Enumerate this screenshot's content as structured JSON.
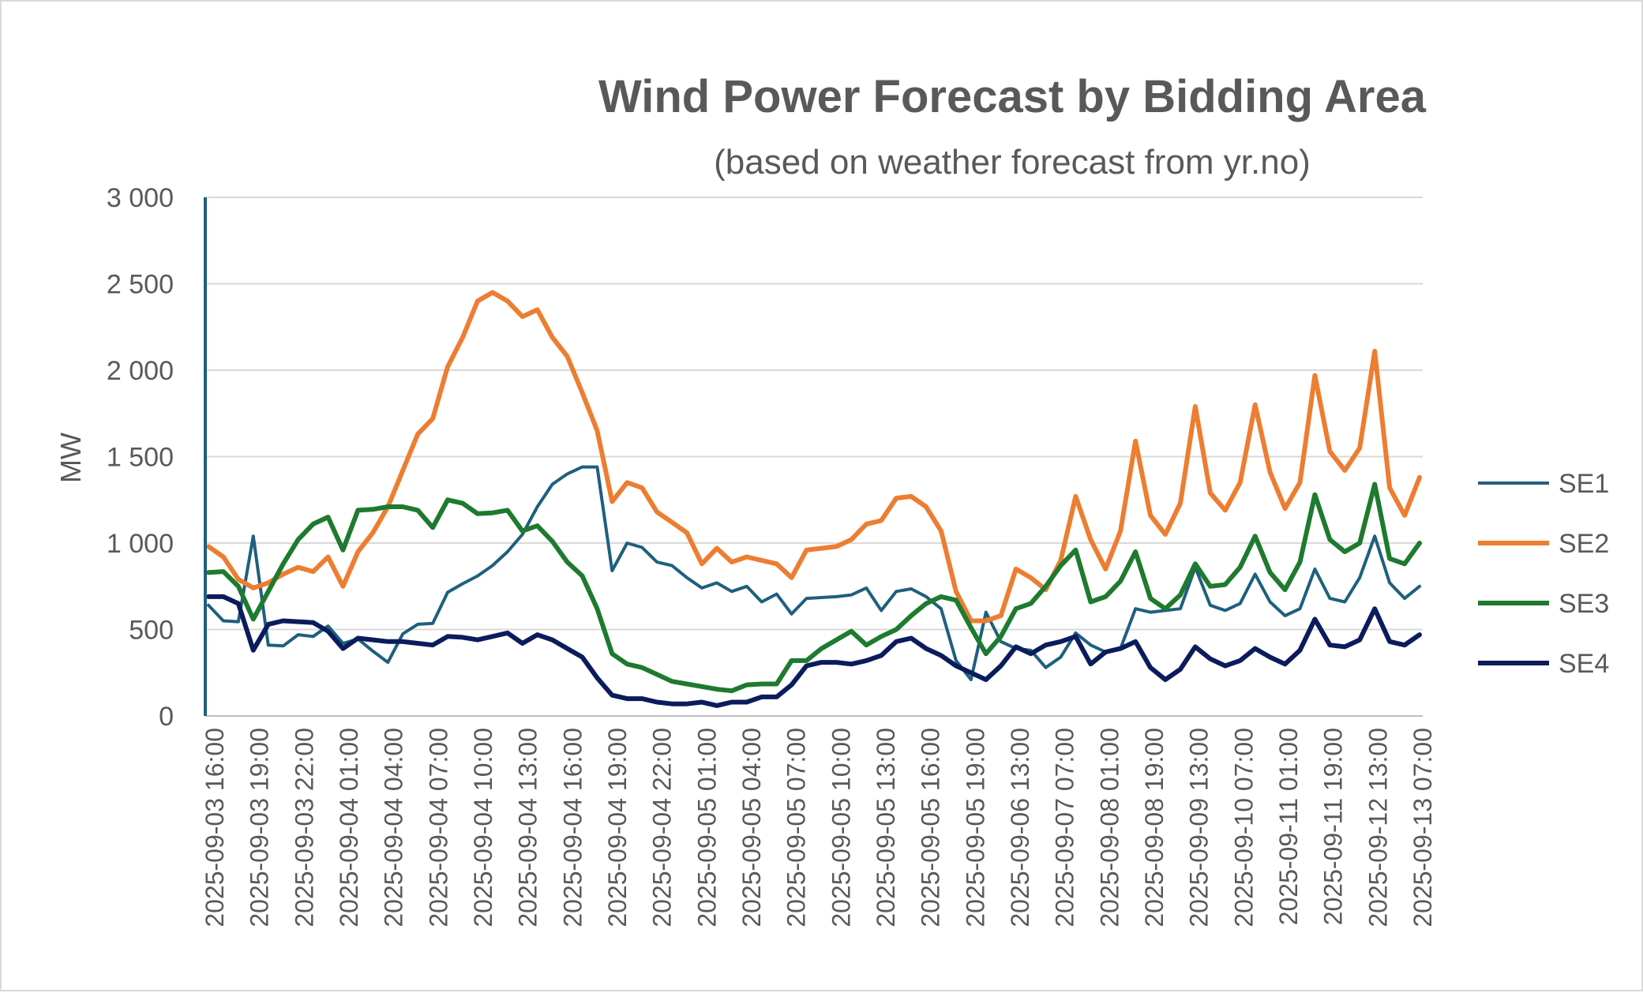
{
  "chart_data": {
    "type": "line",
    "title": "Wind Power Forecast by Bidding Area",
    "subtitle": "(based on weather forecast from yr.no)",
    "ylabel": "MW",
    "xlabel": "",
    "ylim": [
      0,
      3000
    ],
    "yticks": [
      0,
      500,
      1000,
      1500,
      2000,
      2500,
      3000
    ],
    "ytick_labels": [
      "0",
      "500",
      "1 000",
      "1 500",
      "2 000",
      "2 500",
      "3 000"
    ],
    "grid": "horizontal",
    "legend_position": "right",
    "x_tick_labels": [
      "2025-09-03 16:00",
      "2025-09-03 19:00",
      "2025-09-03 22:00",
      "2025-09-04 01:00",
      "2025-09-04 04:00",
      "2025-09-04 07:00",
      "2025-09-04 10:00",
      "2025-09-04 13:00",
      "2025-09-04 16:00",
      "2025-09-04 19:00",
      "2025-09-04 22:00",
      "2025-09-05 01:00",
      "2025-09-05 04:00",
      "2025-09-05 07:00",
      "2025-09-05 10:00",
      "2025-09-05 13:00",
      "2025-09-05 16:00",
      "2025-09-05 19:00",
      "2025-09-06 13:00",
      "2025-09-07 07:00",
      "2025-09-08 01:00",
      "2025-09-08 19:00",
      "2025-09-09 13:00",
      "2025-09-10 07:00",
      "2025-09-11 01:00",
      "2025-09-11 19:00",
      "2025-09-12 13:00",
      "2025-09-13 07:00"
    ],
    "series": [
      {
        "name": "SE1",
        "color": "#1f5f7e",
        "values": [
          640,
          550,
          545,
          1040,
          410,
          405,
          470,
          460,
          520,
          420,
          445,
          375,
          310,
          475,
          530,
          535,
          715,
          765,
          810,
          870,
          950,
          1050,
          1210,
          1340,
          1400,
          1440,
          1440,
          840,
          1000,
          975,
          890,
          870,
          800,
          740,
          770,
          720,
          750,
          660,
          705,
          590,
          680,
          685,
          690,
          700,
          740,
          610,
          720,
          735,
          690,
          620,
          320,
          210,
          600,
          430,
          390,
          380,
          280,
          340,
          480,
          410,
          370,
          390,
          620,
          600,
          610,
          620,
          860,
          640,
          610,
          650,
          820,
          660,
          580,
          620,
          850,
          680,
          660,
          800,
          1040,
          770,
          680,
          750
        ]
      },
      {
        "name": "SE2",
        "color": "#ed7d31",
        "values": [
          980,
          920,
          790,
          740,
          770,
          820,
          860,
          835,
          920,
          750,
          950,
          1060,
          1210,
          1420,
          1630,
          1720,
          2020,
          2190,
          2400,
          2450,
          2400,
          2310,
          2350,
          2190,
          2080,
          1870,
          1650,
          1240,
          1350,
          1320,
          1180,
          1120,
          1060,
          880,
          970,
          890,
          920,
          900,
          880,
          800,
          960,
          970,
          980,
          1020,
          1110,
          1130,
          1260,
          1270,
          1210,
          1070,
          720,
          550,
          550,
          580,
          850,
          800,
          730,
          900,
          1270,
          1020,
          850,
          1070,
          1590,
          1160,
          1050,
          1230,
          1790,
          1290,
          1190,
          1350,
          1800,
          1410,
          1200,
          1350,
          1970,
          1530,
          1420,
          1550,
          2110,
          1320,
          1160,
          1380
        ]
      },
      {
        "name": "SE3",
        "color": "#1e7a2e",
        "values": [
          830,
          835,
          750,
          560,
          720,
          880,
          1020,
          1110,
          1150,
          960,
          1190,
          1195,
          1210,
          1210,
          1190,
          1090,
          1250,
          1230,
          1170,
          1175,
          1190,
          1070,
          1100,
          1010,
          890,
          810,
          620,
          360,
          300,
          280,
          240,
          200,
          185,
          170,
          155,
          145,
          180,
          185,
          185,
          320,
          320,
          390,
          440,
          490,
          410,
          460,
          500,
          580,
          650,
          690,
          670,
          510,
          360,
          460,
          620,
          650,
          750,
          870,
          960,
          660,
          690,
          780,
          950,
          680,
          620,
          700,
          880,
          750,
          760,
          860,
          1040,
          830,
          730,
          890,
          1280,
          1020,
          950,
          1000,
          1340,
          910,
          880,
          1000
        ]
      },
      {
        "name": "SE4",
        "color": "#0b1c5c",
        "values": [
          690,
          690,
          650,
          380,
          530,
          550,
          545,
          540,
          490,
          390,
          450,
          440,
          430,
          430,
          420,
          410,
          460,
          455,
          440,
          460,
          480,
          420,
          470,
          440,
          390,
          340,
          220,
          120,
          100,
          100,
          80,
          70,
          70,
          80,
          60,
          80,
          80,
          110,
          110,
          180,
          290,
          310,
          310,
          300,
          320,
          350,
          430,
          450,
          390,
          350,
          290,
          250,
          210,
          290,
          400,
          360,
          410,
          430,
          460,
          300,
          370,
          390,
          430,
          280,
          210,
          270,
          400,
          330,
          290,
          320,
          390,
          340,
          300,
          380,
          560,
          410,
          400,
          440,
          620,
          430,
          410,
          470
        ]
      }
    ]
  }
}
